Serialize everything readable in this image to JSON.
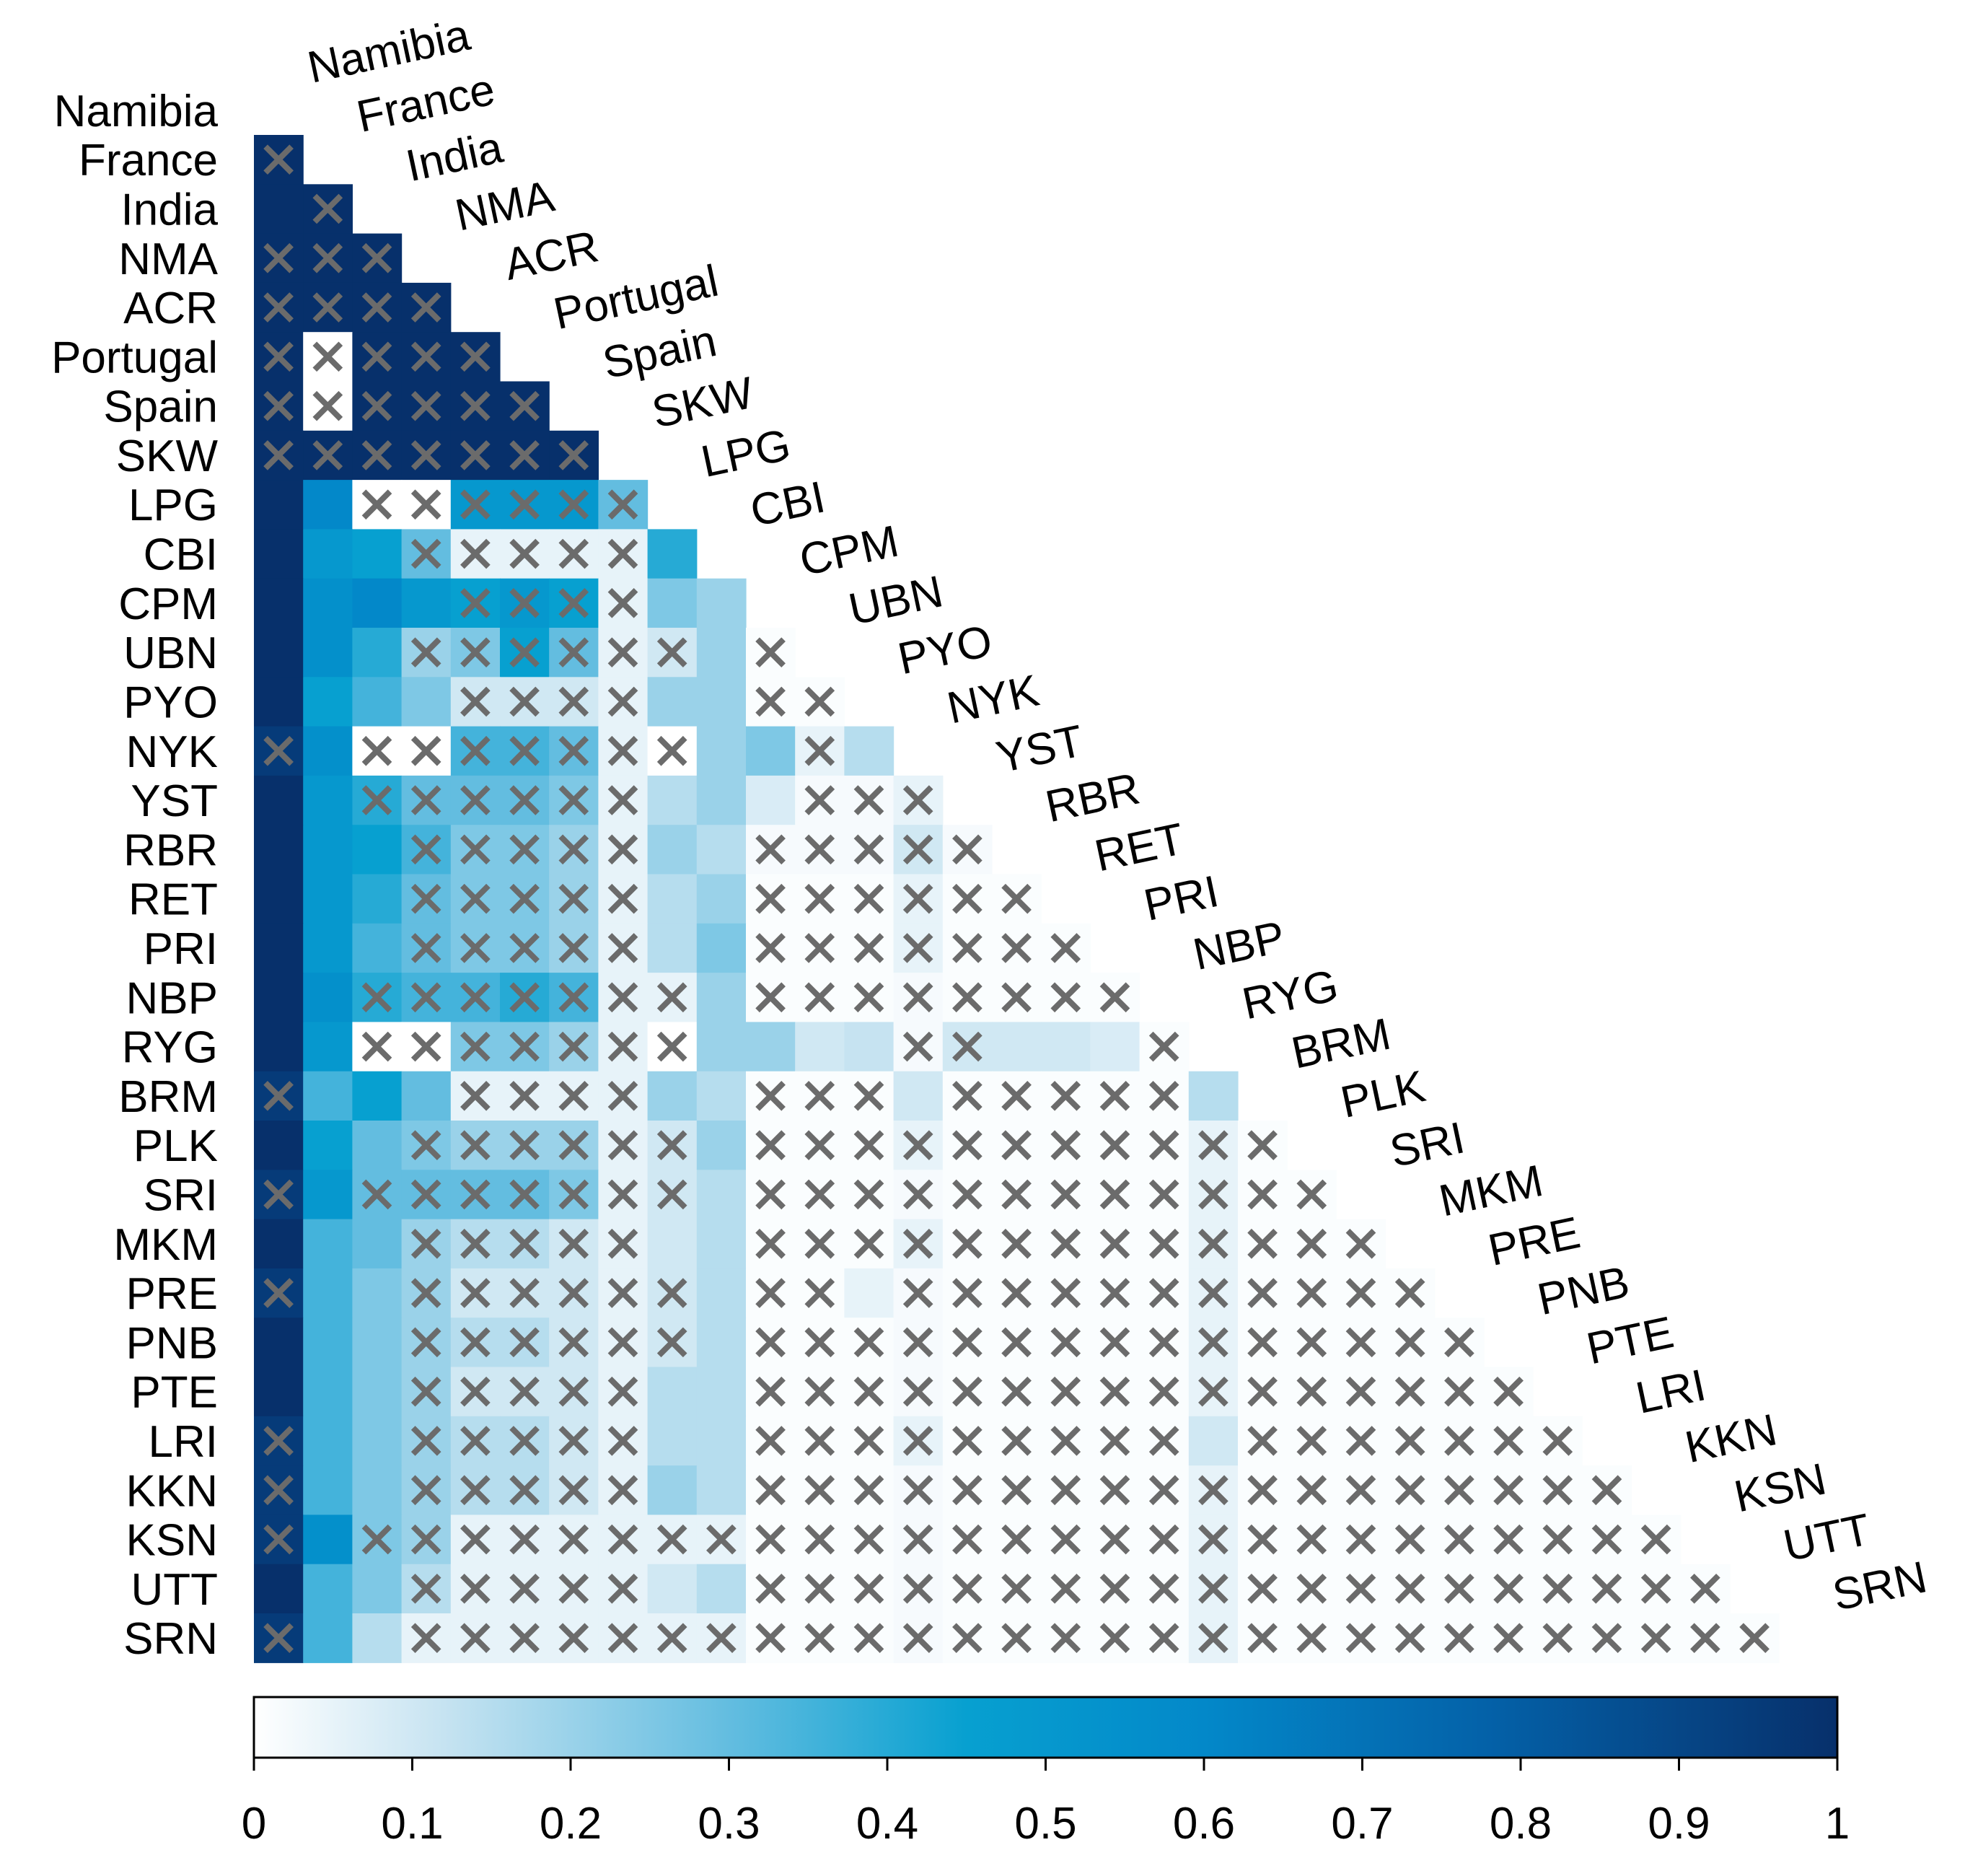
{
  "chart_data": {
    "type": "heatmap",
    "labels": [
      "Namibia",
      "France",
      "India",
      "NMA",
      "ACR",
      "Portugal",
      "Spain",
      "SKW",
      "LPG",
      "CBI",
      "CPM",
      "UBN",
      "PYO",
      "NYK",
      "YST",
      "RBR",
      "RET",
      "PRI",
      "NBP",
      "RYG",
      "BRM",
      "PLK",
      "SRI",
      "MKM",
      "PRE",
      "PNB",
      "PTE",
      "LRI",
      "KKN",
      "KSN",
      "UTT",
      "SRN"
    ],
    "matrix_shape": "lower-triangle",
    "colorbar": {
      "min": 0,
      "max": 1,
      "ticks": [
        "0",
        "0.1",
        "0.2",
        "0.3",
        "0.4",
        "0.5",
        "0.6",
        "0.7",
        "0.8",
        "0.9",
        "1"
      ],
      "colors": [
        "#ffffff",
        "#c6e3f1",
        "#63bde0",
        "#07a0d0",
        "#0388c9",
        "#0461a8",
        "#07306b"
      ]
    },
    "rows": [
      [],
      [
        1
      ],
      [
        1,
        1
      ],
      [
        1,
        1,
        1
      ],
      [
        1,
        1,
        1,
        1
      ],
      [
        1,
        0,
        1,
        1,
        1
      ],
      [
        1,
        0,
        1,
        1,
        1,
        1
      ],
      [
        1,
        1,
        1,
        1,
        1,
        1,
        1
      ],
      [
        1,
        0.6,
        0,
        0,
        0.5,
        0.5,
        0.5,
        0.3
      ],
      [
        1,
        0.5,
        0.45,
        0.3,
        0.05,
        0.05,
        0.05,
        0.05,
        0.4
      ],
      [
        1,
        0.55,
        0.6,
        0.5,
        0.45,
        0.5,
        0.45,
        0.05,
        0.25,
        0.2
      ],
      [
        1,
        0.55,
        0.4,
        0.2,
        0.25,
        0.45,
        0.3,
        0.05,
        0.1,
        0.2,
        0.01
      ],
      [
        1,
        0.45,
        0.35,
        0.25,
        0.1,
        0.1,
        0.1,
        0.05,
        0.2,
        0.2,
        0.01,
        0.01
      ],
      [
        0.95,
        0.55,
        0,
        0,
        0.35,
        0.35,
        0.3,
        0.05,
        0,
        0.2,
        0.25,
        0.05,
        0.15
      ],
      [
        1,
        0.5,
        0.4,
        0.3,
        0.3,
        0.3,
        0.25,
        0.05,
        0.15,
        0.2,
        0.08,
        0.02,
        0.02,
        0.05
      ],
      [
        1,
        0.5,
        0.45,
        0.35,
        0.25,
        0.25,
        0.2,
        0.05,
        0.2,
        0.15,
        0.02,
        0.02,
        0.02,
        0.1,
        0.02
      ],
      [
        1,
        0.5,
        0.4,
        0.3,
        0.25,
        0.25,
        0.2,
        0.05,
        0.15,
        0.2,
        0.01,
        0.01,
        0.01,
        0.05,
        0.01,
        0.01
      ],
      [
        1,
        0.5,
        0.35,
        0.3,
        0.25,
        0.25,
        0.2,
        0.05,
        0.15,
        0.25,
        0.01,
        0.01,
        0.01,
        0.05,
        0.01,
        0.01,
        0.01
      ],
      [
        1,
        0.55,
        0.4,
        0.35,
        0.35,
        0.4,
        0.35,
        0.05,
        0.05,
        0.2,
        0.01,
        0.01,
        0.01,
        0.02,
        0.01,
        0.01,
        0.01,
        0.01
      ],
      [
        1,
        0.5,
        0,
        0,
        0.25,
        0.25,
        0.2,
        0.05,
        0,
        0.2,
        0.2,
        0.1,
        0.12,
        0.02,
        0.1,
        0.1,
        0.1,
        0.08,
        0.01
      ],
      [
        0.95,
        0.35,
        0.45,
        0.3,
        0.05,
        0.05,
        0.05,
        0.05,
        0.2,
        0.15,
        0.01,
        0.01,
        0.01,
        0.1,
        0.01,
        0.01,
        0.01,
        0.01,
        0.01,
        0.15
      ],
      [
        1,
        0.45,
        0.3,
        0.25,
        0.2,
        0.2,
        0.2,
        0.05,
        0.1,
        0.2,
        0.01,
        0.01,
        0.01,
        0.05,
        0.01,
        0.01,
        0.01,
        0.01,
        0.01,
        0.05,
        0.01
      ],
      [
        0.95,
        0.5,
        0.3,
        0.3,
        0.3,
        0.3,
        0.25,
        0.05,
        0.1,
        0.15,
        0.01,
        0.01,
        0.01,
        0.02,
        0.01,
        0.01,
        0.01,
        0.01,
        0.01,
        0.05,
        0.01,
        0.01
      ],
      [
        1,
        0.35,
        0.3,
        0.2,
        0.15,
        0.15,
        0.1,
        0.05,
        0.1,
        0.15,
        0.01,
        0.01,
        0.01,
        0.05,
        0.01,
        0.01,
        0.01,
        0.01,
        0.01,
        0.05,
        0.01,
        0.01,
        0.01
      ],
      [
        0.95,
        0.35,
        0.25,
        0.2,
        0.1,
        0.1,
        0.1,
        0.05,
        0.1,
        0.15,
        0.01,
        0.01,
        0.05,
        0.02,
        0.01,
        0.01,
        0.01,
        0.01,
        0.01,
        0.05,
        0.01,
        0.01,
        0.01,
        0.01
      ],
      [
        1,
        0.35,
        0.25,
        0.2,
        0.15,
        0.15,
        0.1,
        0.05,
        0.1,
        0.15,
        0.01,
        0.01,
        0.01,
        0.02,
        0.01,
        0.01,
        0.01,
        0.01,
        0.01,
        0.05,
        0.01,
        0.01,
        0.01,
        0.01,
        0.01
      ],
      [
        1,
        0.35,
        0.25,
        0.2,
        0.1,
        0.1,
        0.1,
        0.05,
        0.15,
        0.15,
        0.01,
        0.01,
        0.01,
        0.02,
        0.01,
        0.01,
        0.01,
        0.01,
        0.01,
        0.05,
        0.01,
        0.01,
        0.01,
        0.01,
        0.01,
        0.01
      ],
      [
        0.95,
        0.35,
        0.25,
        0.2,
        0.15,
        0.15,
        0.1,
        0.05,
        0.15,
        0.15,
        0.01,
        0.01,
        0.01,
        0.05,
        0.01,
        0.01,
        0.01,
        0.01,
        0.01,
        0.1,
        0.01,
        0.01,
        0.01,
        0.01,
        0.01,
        0.01,
        0.01
      ],
      [
        0.95,
        0.35,
        0.25,
        0.2,
        0.15,
        0.15,
        0.1,
        0.05,
        0.2,
        0.15,
        0.01,
        0.01,
        0.01,
        0.02,
        0.01,
        0.01,
        0.01,
        0.01,
        0.01,
        0.05,
        0.01,
        0.01,
        0.01,
        0.01,
        0.01,
        0.01,
        0.01,
        0.01
      ],
      [
        0.95,
        0.55,
        0.25,
        0.2,
        0.05,
        0.05,
        0.05,
        0.05,
        0.05,
        0.05,
        0.01,
        0.01,
        0.01,
        0.02,
        0.01,
        0.01,
        0.01,
        0.01,
        0.01,
        0.05,
        0.01,
        0.01,
        0.01,
        0.01,
        0.01,
        0.01,
        0.01,
        0.01,
        0.01
      ],
      [
        1,
        0.35,
        0.25,
        0.15,
        0.05,
        0.05,
        0.05,
        0.05,
        0.1,
        0.15,
        0.01,
        0.01,
        0.01,
        0.02,
        0.01,
        0.01,
        0.01,
        0.01,
        0.01,
        0.05,
        0.01,
        0.01,
        0.01,
        0.01,
        0.01,
        0.01,
        0.01,
        0.01,
        0.01,
        0.01
      ],
      [
        0.95,
        0.35,
        0.15,
        0.05,
        0.05,
        0.05,
        0.05,
        0.05,
        0.05,
        0.05,
        0.01,
        0.01,
        0.01,
        0.02,
        0.01,
        0.01,
        0.01,
        0.01,
        0.01,
        0.05,
        0.01,
        0.01,
        0.01,
        0.01,
        0.01,
        0.01,
        0.01,
        0.01,
        0.01,
        0.01,
        0.01
      ]
    ],
    "crossed": [
      [],
      [
        0
      ],
      [
        1
      ],
      [
        0,
        1,
        2
      ],
      [
        0,
        1,
        2,
        3
      ],
      [
        0,
        1,
        2,
        3,
        4
      ],
      [
        0,
        1,
        2,
        3,
        4,
        5
      ],
      [
        0,
        1,
        2,
        3,
        4,
        5,
        6
      ],
      [
        2,
        3,
        4,
        5,
        6,
        7
      ],
      [
        3,
        4,
        5,
        6,
        7
      ],
      [
        4,
        5,
        6,
        7
      ],
      [
        3,
        4,
        5,
        6,
        7,
        8,
        10
      ],
      [
        4,
        5,
        6,
        7,
        10,
        11
      ],
      [
        0,
        2,
        3,
        4,
        5,
        6,
        7,
        8,
        11
      ],
      [
        2,
        3,
        4,
        5,
        6,
        7,
        11,
        12,
        13
      ],
      [
        3,
        4,
        5,
        6,
        7,
        10,
        11,
        12,
        13,
        14
      ],
      [
        3,
        4,
        5,
        6,
        7,
        10,
        11,
        12,
        13,
        14,
        15
      ],
      [
        3,
        4,
        5,
        6,
        7,
        10,
        11,
        12,
        13,
        14,
        15,
        16
      ],
      [
        2,
        3,
        4,
        5,
        6,
        7,
        8,
        10,
        11,
        12,
        13,
        14,
        15,
        16,
        17
      ],
      [
        2,
        3,
        4,
        5,
        6,
        7,
        8,
        13,
        14,
        18
      ],
      [
        0,
        4,
        5,
        6,
        7,
        10,
        11,
        12,
        14,
        15,
        16,
        17,
        18
      ],
      [
        3,
        4,
        5,
        6,
        7,
        8,
        10,
        11,
        12,
        13,
        14,
        15,
        16,
        17,
        18,
        19,
        20
      ],
      [
        0,
        2,
        3,
        4,
        5,
        6,
        7,
        8,
        10,
        11,
        12,
        13,
        14,
        15,
        16,
        17,
        18,
        19,
        20,
        21
      ],
      [
        3,
        4,
        5,
        6,
        7,
        10,
        11,
        12,
        13,
        14,
        15,
        16,
        17,
        18,
        19,
        20,
        21,
        22
      ],
      [
        0,
        3,
        4,
        5,
        6,
        7,
        8,
        10,
        11,
        13,
        14,
        15,
        16,
        17,
        18,
        19,
        20,
        21,
        22,
        23
      ],
      [
        3,
        4,
        5,
        6,
        7,
        8,
        10,
        11,
        12,
        13,
        14,
        15,
        16,
        17,
        18,
        19,
        20,
        21,
        22,
        23,
        24
      ],
      [
        3,
        4,
        5,
        6,
        7,
        10,
        11,
        12,
        13,
        14,
        15,
        16,
        17,
        18,
        19,
        20,
        21,
        22,
        23,
        24,
        25
      ],
      [
        0,
        3,
        4,
        5,
        6,
        7,
        10,
        11,
        12,
        13,
        14,
        15,
        16,
        17,
        18,
        20,
        21,
        22,
        23,
        24,
        25,
        26
      ],
      [
        0,
        3,
        4,
        5,
        6,
        7,
        10,
        11,
        12,
        13,
        14,
        15,
        16,
        17,
        18,
        19,
        20,
        21,
        22,
        23,
        24,
        25,
        26,
        27
      ],
      [
        0,
        2,
        3,
        4,
        5,
        6,
        7,
        8,
        9,
        10,
        11,
        12,
        13,
        14,
        15,
        16,
        17,
        18,
        19,
        20,
        21,
        22,
        23,
        24,
        25,
        26,
        27,
        28
      ],
      [
        3,
        4,
        5,
        6,
        7,
        10,
        11,
        12,
        13,
        14,
        15,
        16,
        17,
        18,
        19,
        20,
        21,
        22,
        23,
        24,
        25,
        26,
        27,
        28,
        29
      ],
      [
        0,
        3,
        4,
        5,
        6,
        7,
        8,
        9,
        10,
        11,
        12,
        13,
        14,
        15,
        16,
        17,
        18,
        19,
        20,
        21,
        22,
        23,
        24,
        25,
        26,
        27,
        28,
        29,
        30
      ]
    ]
  }
}
